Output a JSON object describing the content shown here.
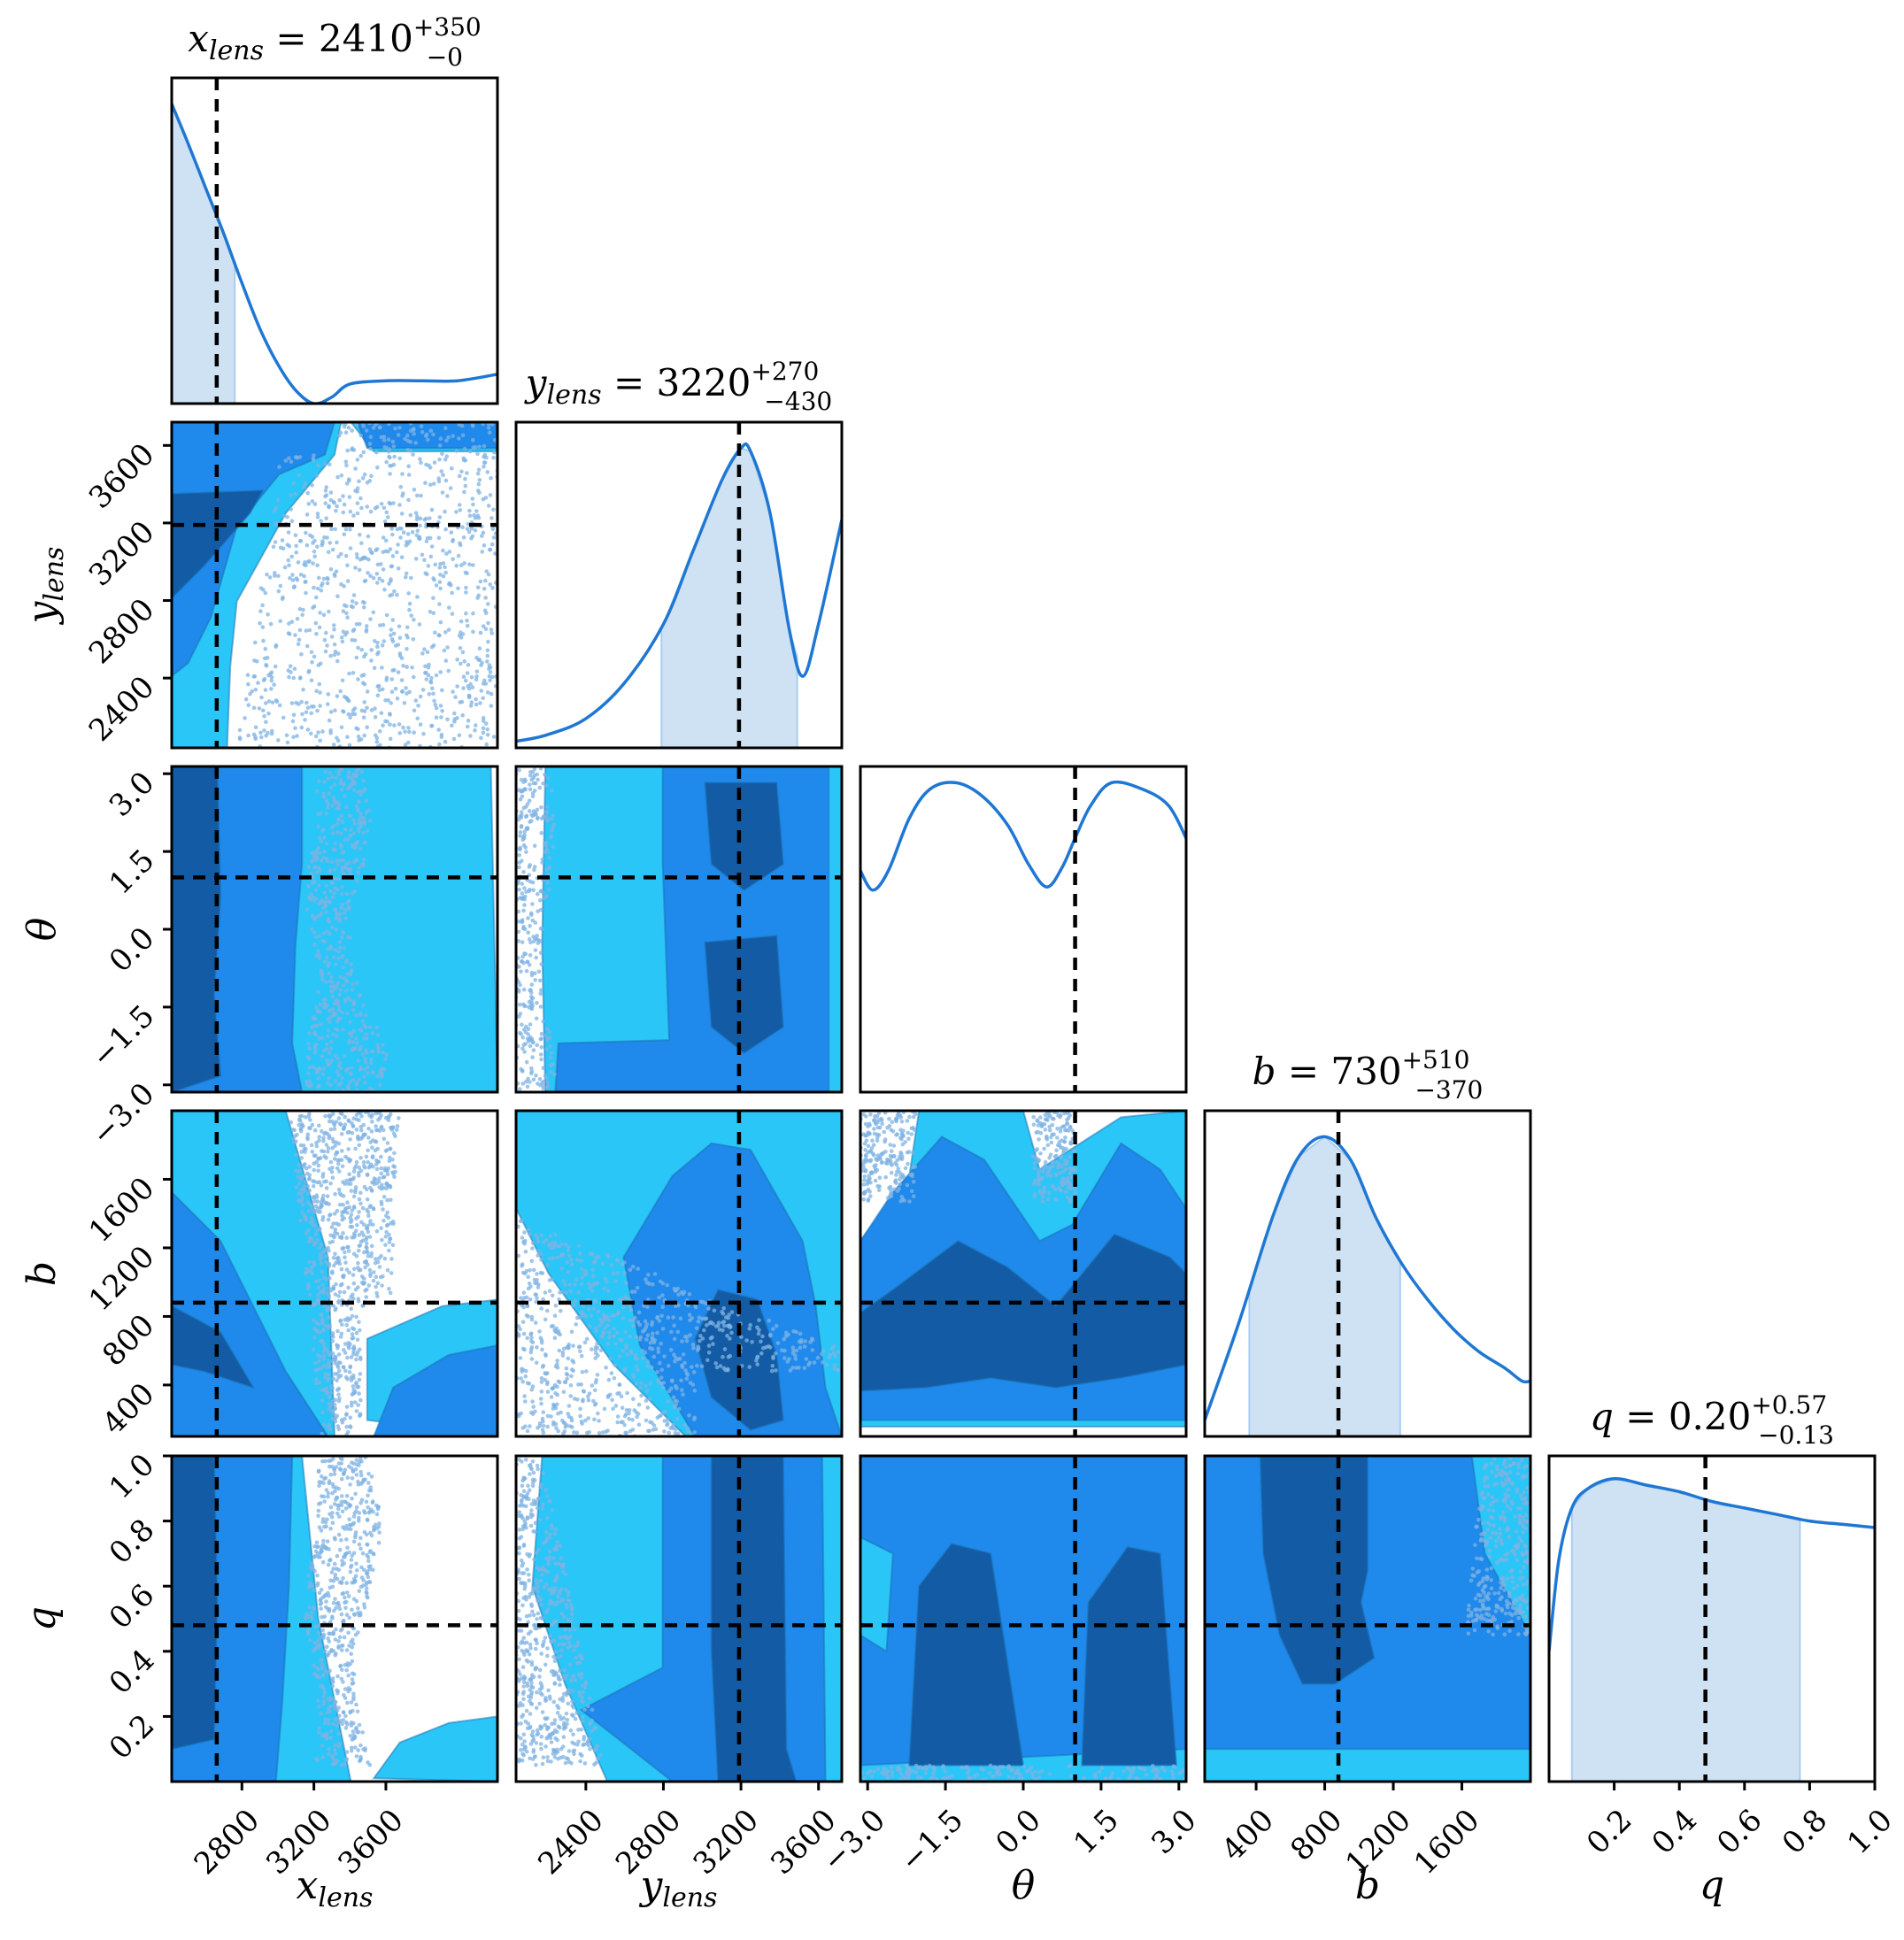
{
  "chart_data": {
    "type": "corner",
    "parameters": [
      {
        "key": "x_lens",
        "label_base": "x",
        "label_sub": "lens",
        "range": [
          2410,
          4220
        ],
        "ticks": [
          2800,
          3200,
          3600
        ],
        "tick_labels": [
          "2800",
          "3200",
          "3600"
        ],
        "truth": 2660
      },
      {
        "key": "y_lens",
        "label_base": "y",
        "label_sub": "lens",
        "range": [
          2040,
          3720
        ],
        "ticks": [
          2400,
          2800,
          3200,
          3600
        ],
        "tick_labels": [
          "2400",
          "2800",
          "3200",
          "3600"
        ],
        "truth": 3190
      },
      {
        "key": "theta",
        "label_base": "θ",
        "label_sub": "",
        "range": [
          -3.14,
          3.14
        ],
        "ticks": [
          -3.0,
          -1.5,
          0.0,
          1.5,
          3.0
        ],
        "tick_labels": [
          "−3.0",
          "−1.5",
          "0.0",
          "1.5",
          "3.0"
        ],
        "truth": 1.0
      },
      {
        "key": "b",
        "label_base": "b",
        "label_sub": "",
        "range": [
          100,
          2000
        ],
        "ticks": [
          400,
          800,
          1200,
          1600
        ],
        "tick_labels": [
          "400",
          "800",
          "1200",
          "1600"
        ],
        "truth": 880
      },
      {
        "key": "q",
        "label_base": "q",
        "label_sub": "",
        "range": [
          0.0,
          1.0
        ],
        "ticks": [
          0.2,
          0.4,
          0.6,
          0.8,
          1.0
        ],
        "tick_labels": [
          "0.2",
          "0.4",
          "0.6",
          "0.8",
          "1.0"
        ],
        "truth": 0.48
      }
    ],
    "titles": [
      {
        "base": "x",
        "sub": "lens",
        "value": "2410",
        "plus": "+350",
        "minus": "−0"
      },
      {
        "base": "y",
        "sub": "lens",
        "value": "3220",
        "plus": "+270",
        "minus": "−430"
      },
      null,
      {
        "base": "b",
        "sub": "",
        "value": "730",
        "plus": "+510",
        "minus": "−370"
      },
      {
        "base": "q",
        "sub": "",
        "value": "0.20",
        "plus": "+0.57",
        "minus": "−0.13"
      }
    ],
    "marginals": [
      {
        "credible_interval": [
          2410,
          2760
        ],
        "curve": [
          [
            2410,
            0.92
          ],
          [
            2500,
            0.8
          ],
          [
            2600,
            0.66
          ],
          [
            2700,
            0.52
          ],
          [
            2800,
            0.37
          ],
          [
            2900,
            0.23
          ],
          [
            3000,
            0.12
          ],
          [
            3100,
            0.04
          ],
          [
            3200,
            0.0
          ],
          [
            3300,
            0.02
          ],
          [
            3400,
            0.06
          ],
          [
            3600,
            0.07
          ],
          [
            3800,
            0.07
          ],
          [
            4000,
            0.07
          ],
          [
            4220,
            0.09
          ]
        ]
      },
      {
        "credible_interval": [
          2790,
          3490
        ],
        "curve": [
          [
            2040,
            0.02
          ],
          [
            2200,
            0.04
          ],
          [
            2400,
            0.09
          ],
          [
            2600,
            0.2
          ],
          [
            2800,
            0.38
          ],
          [
            2950,
            0.6
          ],
          [
            3100,
            0.82
          ],
          [
            3200,
            0.92
          ],
          [
            3250,
            0.91
          ],
          [
            3350,
            0.72
          ],
          [
            3450,
            0.36
          ],
          [
            3520,
            0.22
          ],
          [
            3600,
            0.38
          ],
          [
            3720,
            0.7
          ]
        ]
      },
      {
        "credible_interval": null,
        "curve": [
          [
            -3.14,
            0.68
          ],
          [
            -2.9,
            0.62
          ],
          [
            -2.6,
            0.68
          ],
          [
            -2.2,
            0.84
          ],
          [
            -1.8,
            0.93
          ],
          [
            -1.3,
            0.95
          ],
          [
            -0.8,
            0.91
          ],
          [
            -0.3,
            0.82
          ],
          [
            0.1,
            0.7
          ],
          [
            0.45,
            0.63
          ],
          [
            0.75,
            0.69
          ],
          [
            1.0,
            0.78
          ],
          [
            1.3,
            0.88
          ],
          [
            1.7,
            0.95
          ],
          [
            2.3,
            0.93
          ],
          [
            2.8,
            0.88
          ],
          [
            3.14,
            0.78
          ]
        ]
      },
      {
        "credible_interval": [
          360,
          1240
        ],
        "curve": [
          [
            100,
            0.05
          ],
          [
            300,
            0.35
          ],
          [
            500,
            0.68
          ],
          [
            650,
            0.86
          ],
          [
            800,
            0.92
          ],
          [
            950,
            0.85
          ],
          [
            1100,
            0.67
          ],
          [
            1250,
            0.53
          ],
          [
            1400,
            0.42
          ],
          [
            1550,
            0.33
          ],
          [
            1700,
            0.26
          ],
          [
            1850,
            0.21
          ],
          [
            1950,
            0.17
          ],
          [
            2000,
            0.17
          ]
        ]
      },
      {
        "credible_interval": [
          0.07,
          0.77
        ],
        "curve": [
          [
            0.0,
            0.4
          ],
          [
            0.03,
            0.68
          ],
          [
            0.07,
            0.84
          ],
          [
            0.12,
            0.9
          ],
          [
            0.2,
            0.93
          ],
          [
            0.3,
            0.91
          ],
          [
            0.4,
            0.89
          ],
          [
            0.5,
            0.86
          ],
          [
            0.6,
            0.84
          ],
          [
            0.7,
            0.82
          ],
          [
            0.8,
            0.8
          ],
          [
            0.9,
            0.79
          ],
          [
            1.0,
            0.78
          ]
        ]
      }
    ],
    "grid": false,
    "legend": "none",
    "colors": {
      "level1": "#135ba4",
      "level2": "#1f89ec",
      "level3": "#2ac6f7",
      "scatter": "#7fb3e3",
      "marginal": "#1f77d4",
      "interval": "#cfe2f3",
      "truth": "#000000"
    }
  }
}
